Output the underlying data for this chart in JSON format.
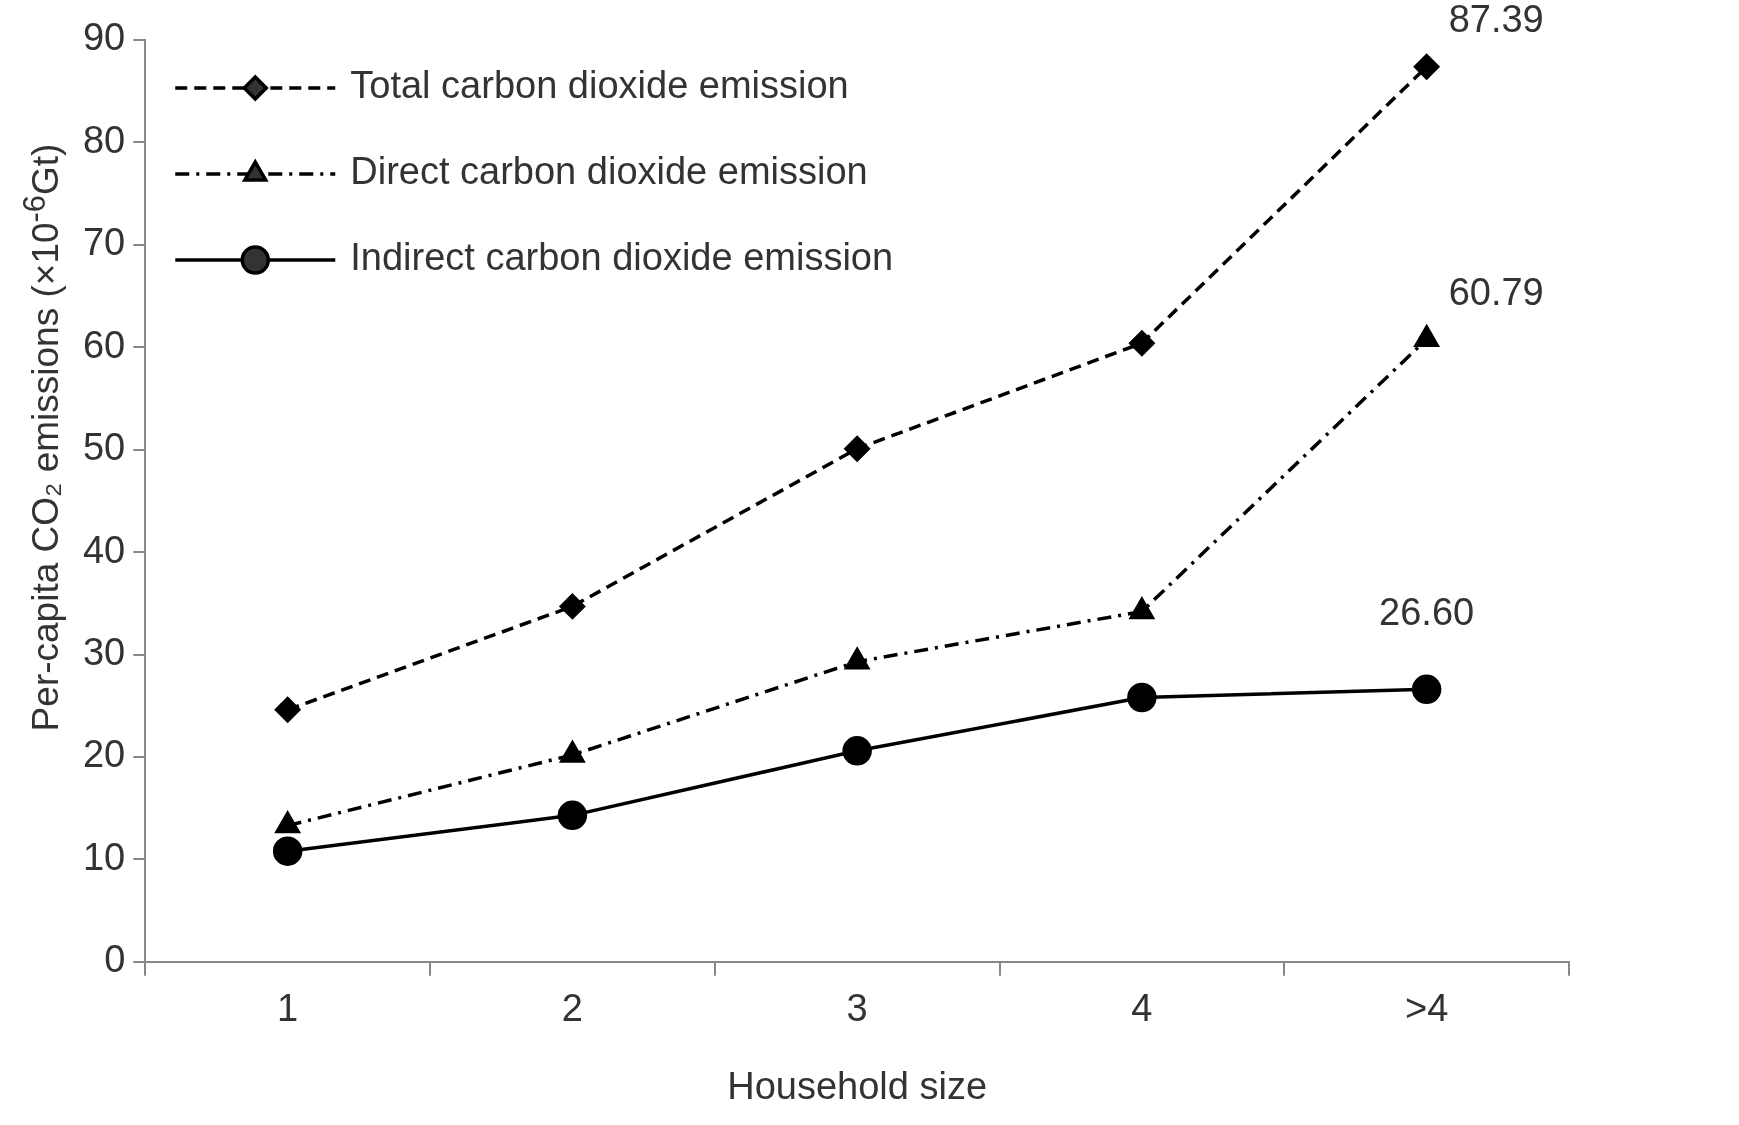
{
  "chart_data": {
    "type": "line",
    "xlabel": "Household size",
    "ylabel": "Per-capita CO₂ emissions (×10$^{-6}$Gt)",
    "categories": [
      "1",
      "2",
      "3",
      "4",
      ">4"
    ],
    "ylim": [
      0,
      90
    ],
    "yticks": [
      0,
      10,
      20,
      30,
      40,
      50,
      60,
      70,
      80,
      90
    ],
    "grid": false,
    "legend": "top left",
    "series": [
      {
        "name": "Total carbon dioxide emission",
        "color": "#000000",
        "marker": "diamond",
        "line_style": "dashed",
        "values": [
          24.6,
          34.7,
          50.1,
          60.4,
          87.39
        ],
        "value_labels": [
          null,
          null,
          null,
          null,
          "87.39"
        ]
      },
      {
        "name": "Direct carbon dioxide emission",
        "color": "#000000",
        "marker": "triangle",
        "line_style": "dashdot",
        "values": [
          13.3,
          20.2,
          29.3,
          34.2,
          60.79
        ],
        "value_labels": [
          null,
          null,
          null,
          null,
          "60.79"
        ]
      },
      {
        "name": "Indirect carbon dioxide emission",
        "color": "#000000",
        "marker": "circle",
        "line_style": "solid",
        "values": [
          10.8,
          14.3,
          20.6,
          25.8,
          26.6
        ],
        "value_labels": [
          null,
          null,
          null,
          null,
          "26.60"
        ]
      }
    ]
  }
}
